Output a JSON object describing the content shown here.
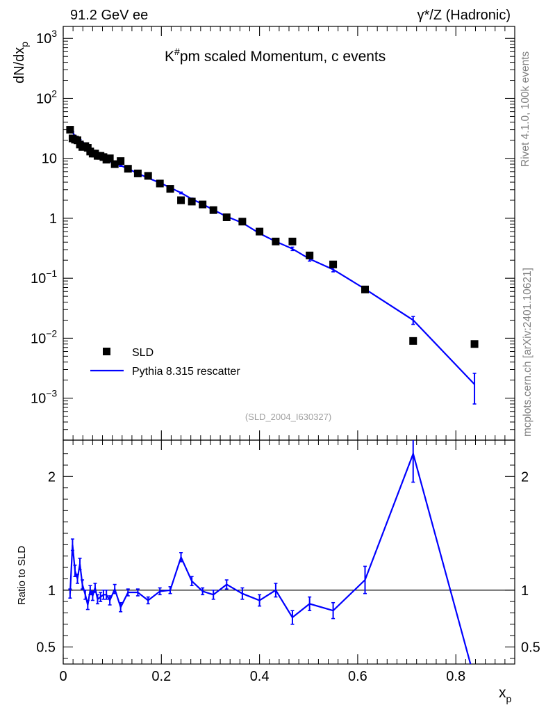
{
  "header": {
    "left": "91.2 GeV ee",
    "right": "γ*/Z (Hadronic)"
  },
  "side_text": {
    "rivet": "Rivet 4.1.0,  100k events",
    "mcplots": "mcplots.cern.ch [arXiv:2401.10621]"
  },
  "chart_data": {
    "type": "line",
    "title": "K#pm scaled Momentum, c events",
    "analysis_id": "(SLD_2004_I630327)",
    "xlabel": "x_p",
    "ylabel_main": "dN/dx_p",
    "ylabel_ratio": "Ratio to SLD",
    "xlim": [
      0,
      0.92
    ],
    "main_ylim_log10": [
      -3.7,
      3.2
    ],
    "ratio_ylim": [
      0.35,
      2.32
    ],
    "main_y_ticks": [
      {
        "v": 1000,
        "label": "10^3"
      },
      {
        "v": 100,
        "label": "10^2"
      },
      {
        "v": 10,
        "label": "10"
      },
      {
        "v": 1,
        "label": "1"
      },
      {
        "v": 0.1,
        "label": "10^-1"
      },
      {
        "v": 0.01,
        "label": "10^-2"
      },
      {
        "v": 0.001,
        "label": "10^-3"
      }
    ],
    "ratio_y_ticks": [
      {
        "v": 0.5,
        "label": "0.5"
      },
      {
        "v": 1,
        "label": "1"
      },
      {
        "v": 2,
        "label": "2"
      }
    ],
    "x_ticks": [
      {
        "v": 0,
        "label": "0"
      },
      {
        "v": 0.2,
        "label": "0.2"
      },
      {
        "v": 0.4,
        "label": "0.4"
      },
      {
        "v": 0.6,
        "label": "0.6"
      },
      {
        "v": 0.8,
        "label": "0.8"
      }
    ],
    "legend": [
      "SLD",
      "Pythia 8.315 rescatter"
    ],
    "legend_position": "bottom-left",
    "series": [
      {
        "name": "SLD",
        "style": "markers",
        "color": "#000000",
        "x": [
          0.014,
          0.019,
          0.024,
          0.029,
          0.034,
          0.039,
          0.045,
          0.05,
          0.055,
          0.06,
          0.065,
          0.07,
          0.076,
          0.082,
          0.088,
          0.095,
          0.105,
          0.117,
          0.132,
          0.152,
          0.173,
          0.197,
          0.218,
          0.24,
          0.262,
          0.284,
          0.306,
          0.333,
          0.365,
          0.4,
          0.433,
          0.467,
          0.502,
          0.55,
          0.615,
          0.713,
          0.838
        ],
        "y": [
          30.0,
          21.5,
          20.5,
          20.0,
          17.0,
          15.5,
          16.0,
          15.0,
          13.0,
          12.0,
          12.0,
          11.0,
          11.0,
          10.5,
          9.5,
          10.0,
          8.0,
          9.0,
          6.7,
          5.6,
          5.1,
          3.8,
          3.1,
          2.0,
          1.9,
          1.7,
          1.37,
          1.04,
          0.88,
          0.6,
          0.41,
          0.41,
          0.24,
          0.17,
          0.065,
          0.009,
          0.008
        ]
      },
      {
        "name": "Pythia 8.315 rescatter",
        "style": "line",
        "color": "#0000ff",
        "x": [
          0.014,
          0.019,
          0.024,
          0.029,
          0.034,
          0.039,
          0.045,
          0.05,
          0.055,
          0.06,
          0.065,
          0.07,
          0.076,
          0.082,
          0.088,
          0.095,
          0.105,
          0.117,
          0.132,
          0.152,
          0.173,
          0.197,
          0.218,
          0.24,
          0.262,
          0.284,
          0.306,
          0.333,
          0.365,
          0.4,
          0.433,
          0.467,
          0.502,
          0.55,
          0.615,
          0.713,
          0.838
        ],
        "y": [
          29.0,
          27.3,
          23.4,
          21.8,
          19.8,
          18.0,
          16.5,
          15.2,
          14.0,
          13.2,
          12.4,
          11.5,
          10.8,
          10.2,
          9.6,
          9.0,
          8.3,
          7.6,
          6.7,
          5.6,
          4.7,
          3.9,
          3.25,
          2.65,
          2.1,
          1.72,
          1.38,
          1.07,
          0.84,
          0.56,
          0.41,
          0.31,
          0.21,
          0.14,
          0.066,
          0.02,
          0.0017
        ],
        "err": [
          0.9,
          0.8,
          0.7,
          0.6,
          0.6,
          0.5,
          0.5,
          0.5,
          0.4,
          0.4,
          0.4,
          0.35,
          0.3,
          0.3,
          0.3,
          0.3,
          0.25,
          0.25,
          0.2,
          0.15,
          0.13,
          0.11,
          0.1,
          0.08,
          0.07,
          0.06,
          0.05,
          0.04,
          0.035,
          0.03,
          0.025,
          0.02,
          0.017,
          0.012,
          0.007,
          0.003,
          0.0009
        ]
      }
    ],
    "ratio": {
      "name": "Pythia 8.315 rescatter / SLD",
      "color": "#0000ff",
      "reference": 1,
      "x": [
        0.014,
        0.019,
        0.024,
        0.029,
        0.034,
        0.039,
        0.045,
        0.05,
        0.055,
        0.06,
        0.065,
        0.07,
        0.076,
        0.082,
        0.088,
        0.095,
        0.105,
        0.117,
        0.132,
        0.152,
        0.173,
        0.197,
        0.218,
        0.24,
        0.262,
        0.284,
        0.306,
        0.333,
        0.365,
        0.4,
        0.433,
        0.467,
        0.502,
        0.55,
        0.615,
        0.713,
        0.838
      ],
      "y": [
        0.97,
        1.4,
        1.17,
        1.1,
        1.23,
        1.05,
        0.96,
        0.87,
        1.0,
        0.95,
        1.02,
        0.92,
        0.94,
        0.96,
        0.96,
        0.91,
        1.01,
        0.85,
        0.98,
        0.98,
        0.91,
        0.99,
        1.0,
        1.29,
        1.08,
        0.99,
        0.96,
        1.05,
        0.97,
        0.91,
        1.0,
        0.76,
        0.88,
        0.82,
        1.09,
        2.2,
        0.22
      ],
      "err": [
        0.04,
        0.05,
        0.05,
        0.04,
        0.05,
        0.04,
        0.04,
        0.04,
        0.04,
        0.04,
        0.04,
        0.04,
        0.04,
        0.04,
        0.04,
        0.04,
        0.04,
        0.04,
        0.03,
        0.03,
        0.03,
        0.03,
        0.03,
        0.04,
        0.04,
        0.03,
        0.04,
        0.04,
        0.05,
        0.05,
        0.06,
        0.06,
        0.06,
        0.07,
        0.12,
        0.25,
        0.1
      ]
    }
  }
}
